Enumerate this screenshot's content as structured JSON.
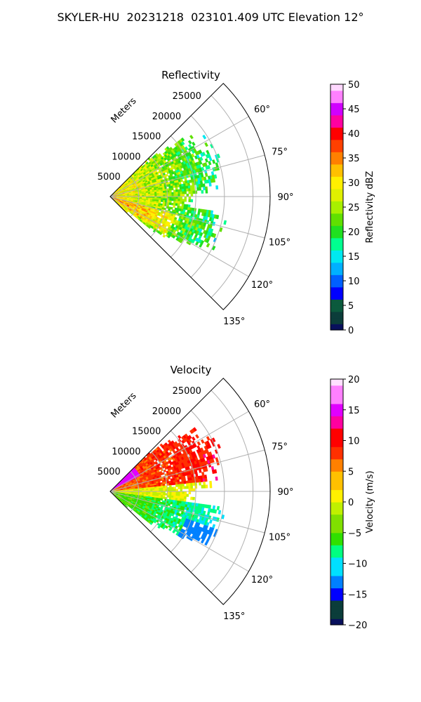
{
  "figure": {
    "title": "SKYLER-HU  20231218  023101.409 UTC Elevation 12°"
  },
  "colors": {
    "grid": "#b0b0b0",
    "reflectivity_scale": [
      "#08105c",
      "#0b3d3a",
      "#0b5a3d",
      "#0000ff",
      "#0060ff",
      "#00b0ff",
      "#00e8f0",
      "#00ff90",
      "#20e020",
      "#60e000",
      "#a8f000",
      "#e0f000",
      "#fff000",
      "#ffc000",
      "#ff8000",
      "#ff4000",
      "#ff0000",
      "#ff00a0",
      "#d000ff",
      "#ff80ff",
      "#ffd8ff"
    ],
    "velocity_scale": [
      "#08105c",
      "#0b3d3a",
      "#0000ff",
      "#0080ff",
      "#00e0ff",
      "#00ff80",
      "#30e000",
      "#80e000",
      "#c0f000",
      "#fff000",
      "#ffc000",
      "#ff8000",
      "#ff3000",
      "#ff0000",
      "#ff00a0",
      "#e000ff",
      "#ff80ff",
      "#ffe0ff"
    ]
  },
  "chart_data": [
    {
      "type": "heatmap",
      "projection": "polar-sector",
      "title": "Reflectivity",
      "r_axis_label": "Meters",
      "r_ticks": [
        5000,
        10000,
        15000,
        20000,
        25000
      ],
      "r_tick_labels": [
        "5000",
        "10000",
        "15000",
        "20000",
        "25000"
      ],
      "r_max": 28000,
      "theta_range_deg": [
        45,
        135
      ],
      "theta_ticks": [
        60,
        75,
        90,
        105,
        120,
        135
      ],
      "theta_tick_labels": [
        "60°",
        "75°",
        "90°",
        "105°",
        "120°",
        "135°"
      ],
      "grid": true,
      "colorbar": {
        "label": "Reflectivity dBZ",
        "range": [
          0,
          50
        ],
        "ticks": [
          0,
          5,
          10,
          15,
          20,
          25,
          30,
          35,
          40,
          45,
          50
        ],
        "tick_labels": [
          "0",
          "5",
          "10",
          "15",
          "20",
          "25",
          "30",
          "35",
          "40",
          "45",
          "50"
        ]
      },
      "field_description_values": {
        "near_range_dbz": 30,
        "mid_range_dbz": 22,
        "far_range_dbz": 17,
        "max_range_m": 26000
      }
    },
    {
      "type": "heatmap",
      "projection": "polar-sector",
      "title": "Velocity",
      "r_axis_label": "Meters",
      "r_ticks": [
        5000,
        10000,
        15000,
        20000,
        25000
      ],
      "r_tick_labels": [
        "5000",
        "10000",
        "15000",
        "20000",
        "25000"
      ],
      "r_max": 28000,
      "theta_range_deg": [
        45,
        135
      ],
      "theta_ticks": [
        60,
        75,
        90,
        105,
        120,
        135
      ],
      "theta_tick_labels": [
        "60°",
        "75°",
        "90°",
        "105°",
        "120°",
        "135°"
      ],
      "grid": true,
      "colorbar": {
        "label": "Velocity (m/s)",
        "range": [
          -20,
          20
        ],
        "ticks": [
          -20,
          -15,
          -10,
          -5,
          0,
          5,
          10,
          15,
          20
        ],
        "tick_labels": [
          "−20",
          "−15",
          "−10",
          "−5",
          "0",
          "5",
          "10",
          "15",
          "20"
        ]
      },
      "field_description_values": {
        "north_side_ms": 10,
        "center_ms": 0,
        "south_side_ms": -8
      }
    }
  ]
}
